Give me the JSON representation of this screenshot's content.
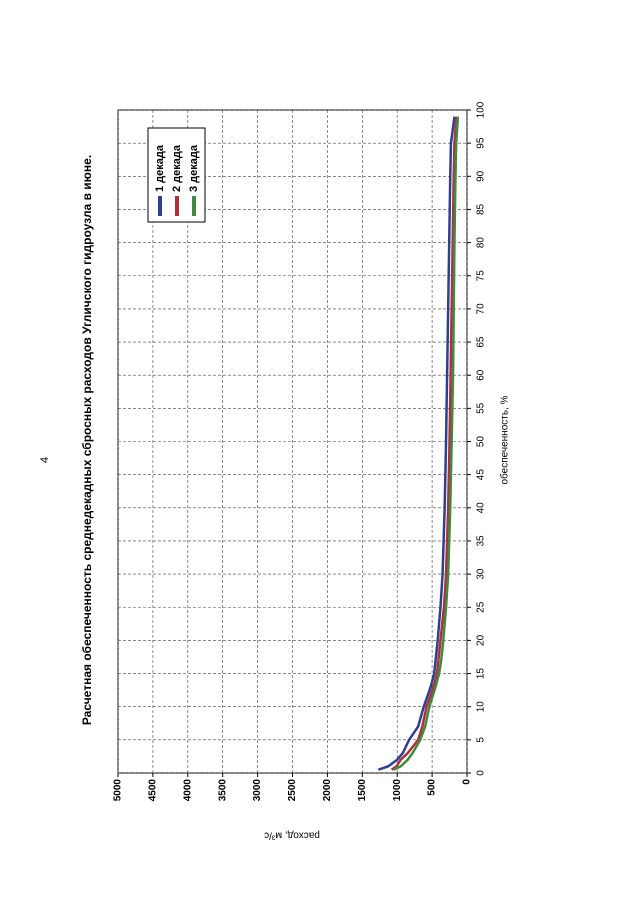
{
  "page_number": "4",
  "chart_data": {
    "type": "line",
    "title": "Расчетная обеспеченность среднедекадных сбросных расходов Угличского гидроузла в июне.",
    "x_label": "обеспеченность, %",
    "y_label": "расход, м³/с",
    "x": [
      0.5,
      1,
      2,
      3,
      5,
      7,
      10,
      13,
      15,
      17,
      20,
      25,
      30,
      40,
      50,
      60,
      70,
      80,
      90,
      95,
      99
    ],
    "series": [
      {
        "name": "1 декада",
        "color": "#2e3f8f",
        "values": [
          1270,
          1130,
          1000,
          920,
          830,
          700,
          620,
          520,
          470,
          450,
          420,
          380,
          350,
          320,
          300,
          285,
          270,
          255,
          240,
          230,
          180
        ]
      },
      {
        "name": "2 декада",
        "color": "#b0303a",
        "values": [
          1080,
          1010,
          950,
          850,
          700,
          640,
          580,
          480,
          430,
          410,
          380,
          330,
          300,
          270,
          250,
          235,
          220,
          205,
          190,
          180,
          150
        ]
      },
      {
        "name": "3 декада",
        "color": "#3f8a3f",
        "values": [
          1050,
          950,
          850,
          780,
          670,
          600,
          540,
          450,
          400,
          370,
          340,
          300,
          270,
          240,
          220,
          200,
          190,
          180,
          165,
          155,
          130
        ]
      }
    ],
    "xlim": [
      0,
      100
    ],
    "xticks": [
      0,
      5,
      10,
      15,
      20,
      25,
      30,
      35,
      40,
      45,
      50,
      55,
      60,
      65,
      70,
      75,
      80,
      85,
      90,
      95,
      100
    ],
    "ylim": [
      0,
      5000
    ],
    "yticks": [
      0,
      500,
      1000,
      1500,
      2000,
      2500,
      3000,
      3500,
      4000,
      4500,
      5000
    ],
    "grid": true,
    "legend": "top-right"
  }
}
